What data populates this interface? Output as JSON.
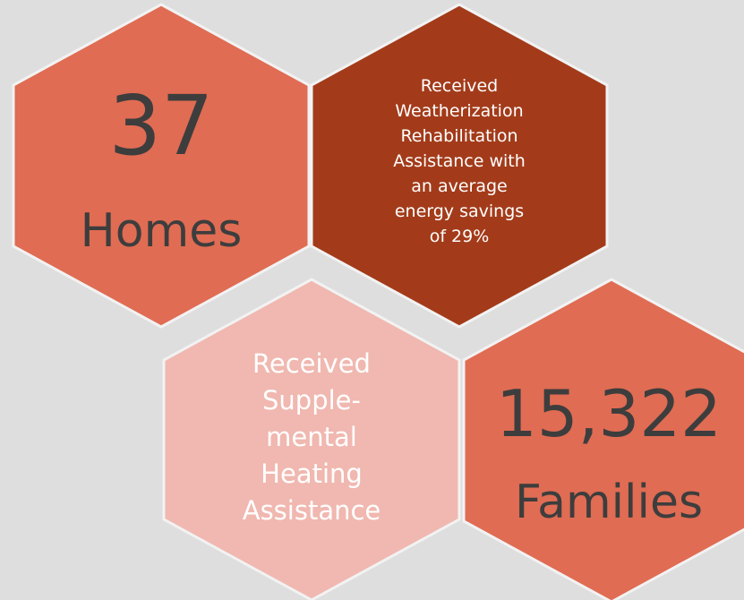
{
  "hexagons": [
    {
      "lines": [
        "37",
        "Homes"
      ]
    },
    {
      "lines": [
        "Received",
        "Weatherization",
        "Rehabilitation",
        "Assistance with",
        "an average",
        "energy savings",
        "of 29%"
      ]
    },
    {
      "lines": [
        "Received",
        "Supple-",
        "mental",
        "Heating",
        "Assistance"
      ]
    },
    {
      "lines": [
        "15,322",
        "Families"
      ]
    }
  ]
}
